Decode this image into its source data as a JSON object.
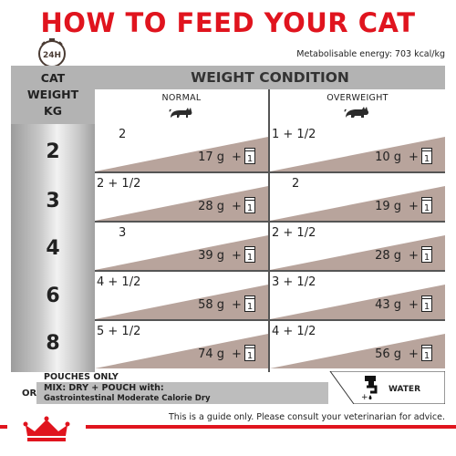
{
  "title": "HOW TO FEED YOUR CAT",
  "clock_label": "24H",
  "energy": "Metabolisable energy: 703 kcal/kg",
  "header": {
    "cat_weight": [
      "CAT",
      "WEIGHT",
      "KG"
    ],
    "weight_condition": "WEIGHT CONDITION",
    "normal": "NORMAL",
    "overweight": "OVERWEIGHT"
  },
  "rows": [
    {
      "weight": "2",
      "normal_pouch": "2",
      "normal_g": "17 g",
      "over_pouch": "1 + 1/2",
      "over_g": "10 g"
    },
    {
      "weight": "3",
      "normal_pouch": "2 + 1/2",
      "normal_g": "28 g",
      "over_pouch": "2",
      "over_g": "19 g"
    },
    {
      "weight": "4",
      "normal_pouch": "3",
      "normal_g": "39 g",
      "over_pouch": "2 + 1/2",
      "over_g": "28 g"
    },
    {
      "weight": "6",
      "normal_pouch": "4 + 1/2",
      "normal_g": "58 g",
      "over_pouch": "3 + 1/2",
      "over_g": "43 g"
    },
    {
      "weight": "8",
      "normal_pouch": "5 + 1/2",
      "normal_g": "74 g",
      "over_pouch": "4 + 1/2",
      "over_g": "56 g"
    }
  ],
  "plus": "+",
  "can_count": "1",
  "footer": {
    "pouches_only": "POUCHES ONLY",
    "or": "OR",
    "mix_line1": "MIX: DRY + POUCH with:",
    "mix_line2": "Gastrointestinal Moderate Calorie Dry",
    "water": "WATER",
    "disclaimer": "This is a guide only. Please consult your veterinarian for advice."
  },
  "colors": {
    "brand_red": "#e0141e",
    "band_taupe": "#b8a49c",
    "header_grey": "#b3b3b3"
  }
}
